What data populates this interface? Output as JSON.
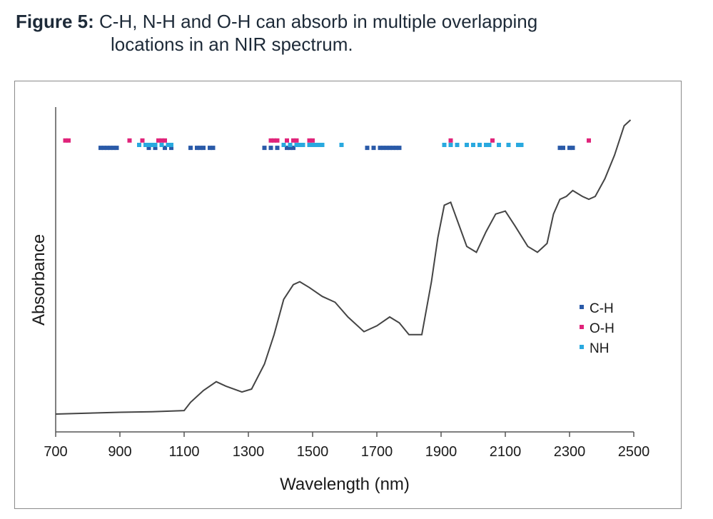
{
  "caption": {
    "label": "Figure 5:",
    "line1": "C-H, N-H and O-H can absorb in multiple overlapping",
    "line2": "locations in an NIR spectrum."
  },
  "chart_data": {
    "type": "line",
    "xlabel": "Wavelength (nm)",
    "ylabel": "Absorbance",
    "xlim": [
      700,
      2500
    ],
    "xticks": [
      700,
      900,
      1100,
      1300,
      1500,
      1700,
      1900,
      2100,
      2300,
      2500
    ],
    "ylim": [
      0,
      1
    ],
    "grid": false,
    "legend": {
      "placement": "right",
      "items": [
        {
          "label": "C-H",
          "color": "#2a5aa8"
        },
        {
          "label": "O-H",
          "color": "#e0237a"
        },
        {
          "label": "NH",
          "color": "#29a9df"
        }
      ]
    },
    "spectrum": {
      "color": "#444444",
      "x": [
        700,
        800,
        900,
        1000,
        1100,
        1120,
        1160,
        1200,
        1230,
        1280,
        1310,
        1350,
        1380,
        1410,
        1440,
        1460,
        1490,
        1530,
        1570,
        1610,
        1660,
        1700,
        1740,
        1770,
        1800,
        1840,
        1870,
        1890,
        1910,
        1930,
        1950,
        1980,
        2010,
        2040,
        2070,
        2100,
        2130,
        2170,
        2200,
        2230,
        2250,
        2270,
        2290,
        2310,
        2340,
        2360,
        2380,
        2410,
        2440,
        2470,
        2490
      ],
      "y": [
        0.0,
        0.003,
        0.006,
        0.008,
        0.012,
        0.04,
        0.08,
        0.11,
        0.095,
        0.075,
        0.085,
        0.17,
        0.27,
        0.39,
        0.44,
        0.45,
        0.43,
        0.4,
        0.38,
        0.33,
        0.28,
        0.3,
        0.33,
        0.31,
        0.27,
        0.27,
        0.45,
        0.6,
        0.71,
        0.72,
        0.66,
        0.57,
        0.55,
        0.62,
        0.68,
        0.69,
        0.64,
        0.57,
        0.55,
        0.58,
        0.68,
        0.73,
        0.74,
        0.76,
        0.74,
        0.73,
        0.74,
        0.8,
        0.88,
        0.98,
        1.0
      ]
    },
    "bands": {
      "rows": {
        "O-H": 0.93,
        "NH": 0.915,
        "C-H": 0.905
      },
      "C-H": [
        840,
        850,
        860,
        870,
        880,
        890,
        990,
        1010,
        1040,
        1060,
        1120,
        1140,
        1150,
        1160,
        1180,
        1190,
        1350,
        1370,
        1390,
        1420,
        1430,
        1440,
        1670,
        1690,
        1710,
        1720,
        1730,
        1740,
        1750,
        1760,
        1770,
        2270,
        2280,
        2300,
        2310
      ],
      "O-H": [
        730,
        740,
        930,
        970,
        1020,
        1030,
        1040,
        1370,
        1380,
        1390,
        1420,
        1440,
        1450,
        1490,
        1500,
        1930,
        2060,
        2360
      ],
      "NH": [
        960,
        980,
        990,
        1000,
        1010,
        1030,
        1050,
        1060,
        1410,
        1430,
        1450,
        1460,
        1470,
        1490,
        1500,
        1510,
        1520,
        1530,
        1590,
        1910,
        1930,
        1950,
        1980,
        2000,
        2020,
        2040,
        2050,
        2080,
        2110,
        2140,
        2150
      ]
    }
  }
}
